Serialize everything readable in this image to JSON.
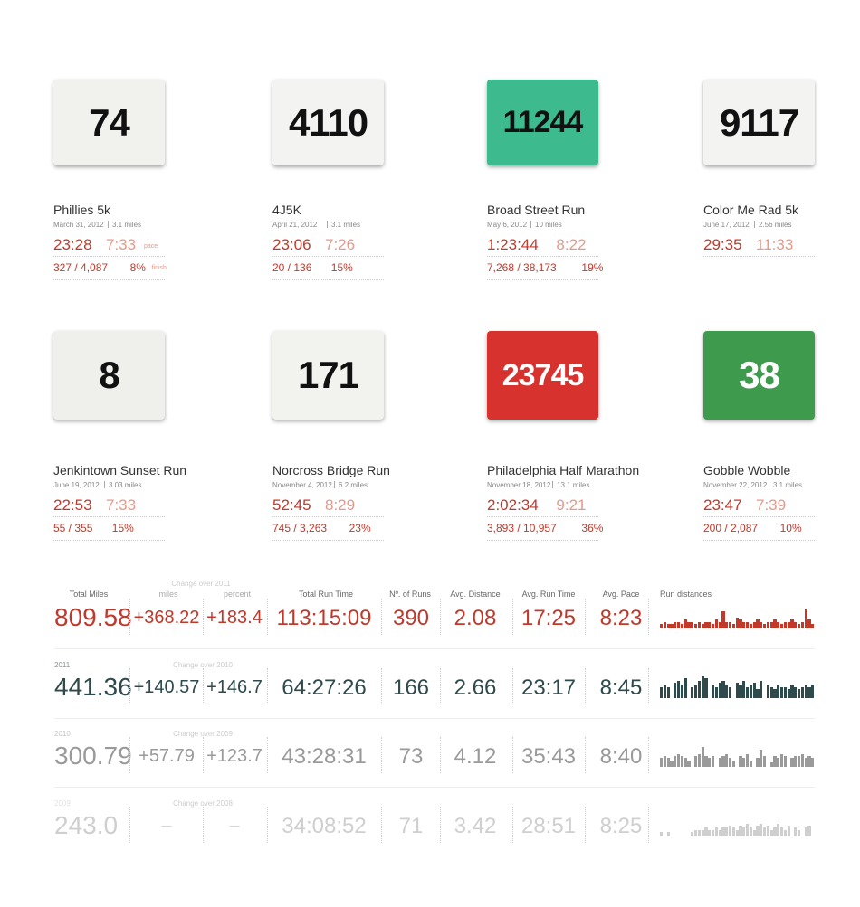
{
  "races": [
    {
      "name": "Phillies 5k",
      "date": "March 31, 2012",
      "distance": "3.1 miles",
      "time": "23:28",
      "pace": "7:33",
      "pace_label": "pace",
      "place": "327 / 4,087",
      "percent": "8%",
      "percent_label": "finish",
      "bib": "74",
      "bib_color": "#f1f1ee"
    },
    {
      "name": "4J5K",
      "date": "April 21, 2012",
      "distance": "3.1 miles",
      "time": "23:06",
      "pace": "7:26",
      "place": "20 / 136",
      "percent": "15%",
      "bib": "4110",
      "bib_color": "#f3f3f1"
    },
    {
      "name": "Broad Street Run",
      "date": "May 6, 2012",
      "distance": "10 miles",
      "time": "1:23:44",
      "pace": "8:22",
      "place": "7,268 / 38,173",
      "percent": "19%",
      "bib": "11244",
      "bib_color": "#3dbb8e"
    },
    {
      "name": "Color Me Rad 5k",
      "date": "June 17, 2012",
      "distance": "2.56 miles",
      "time": "29:35",
      "pace": "11:33",
      "bib": "9117",
      "bib_color": "#f3f3f1"
    },
    {
      "name": "Jenkintown Sunset Run",
      "date": "June 19, 2012",
      "distance": "3.03 miles",
      "time": "22:53",
      "pace": "7:33",
      "place": "55 / 355",
      "percent": "15%",
      "bib": "8",
      "bib_color": "#efefec"
    },
    {
      "name": "Norcross Bridge Run",
      "date": "November 4, 2012",
      "distance": "6.2 miles",
      "time": "52:45",
      "pace": "8:29",
      "place": "745 / 3,263",
      "percent": "23%",
      "bib": "171",
      "bib_color": "#f2f2ef"
    },
    {
      "name": "Philadelphia Half Marathon",
      "date": "November 18, 2012",
      "distance": "13.1 miles",
      "time": "2:02:34",
      "pace": "9:21",
      "place": "3,893 / 10,957",
      "percent": "36%",
      "bib": "23745",
      "bib_color": "#d8322f"
    },
    {
      "name": "Gobble Wobble",
      "date": "November 22, 2012",
      "distance": "3.1 miles",
      "time": "23:47",
      "pace": "7:39",
      "place": "200 / 2,087",
      "percent": "10%",
      "bib": "38",
      "bib_color": "#3e9a4c"
    }
  ],
  "stats": {
    "headers": {
      "total_miles": "Total Miles",
      "change": "Change over 2011",
      "miles": "miles",
      "percent": "percent",
      "run_time": "Total Run Time",
      "runs": "Nº. of Runs",
      "avg_distance": "Avg. Distance",
      "avg_run_time": "Avg. Run Time",
      "avg_pace": "Avg. Pace",
      "run_distances": "Run distances"
    },
    "rows": [
      {
        "color": "#c0392b",
        "total_miles": "809.58",
        "change_miles": "+368.22",
        "change_percent": "+183.4",
        "run_time": "113:15:09",
        "runs": "390",
        "avg_distance": "2.08",
        "avg_run_time": "17:25",
        "avg_pace": "8:23",
        "run_distances": [
          2,
          3,
          2,
          2,
          3,
          3,
          2,
          4,
          3,
          3,
          2,
          3,
          2,
          3,
          3,
          2,
          4,
          3,
          8,
          3,
          3,
          2,
          5,
          4,
          3,
          3,
          2,
          3,
          4,
          3,
          2,
          3,
          3,
          4,
          3,
          2,
          3,
          3,
          4,
          3,
          2,
          3,
          9,
          4,
          2
        ]
      },
      {
        "year": "2011",
        "change_label": "Change over 2010",
        "color": "#2f4a4c",
        "total_miles": "441.36",
        "change_miles": "+140.57",
        "change_percent": "+146.7",
        "run_time": "64:27:26",
        "runs": "166",
        "avg_distance": "2.66",
        "avg_run_time": "23:17",
        "avg_pace": "8:45",
        "run_distances": [
          5,
          6,
          5,
          0,
          7,
          8,
          6,
          9,
          0,
          5,
          6,
          8,
          10,
          9,
          0,
          6,
          5,
          7,
          8,
          6,
          5,
          0,
          7,
          6,
          8,
          5,
          6,
          7,
          4,
          8,
          0,
          6,
          5,
          4,
          6,
          5,
          5,
          4,
          6,
          5,
          4,
          5,
          6,
          5,
          6
        ]
      },
      {
        "year": "2010",
        "change_label": "Change over 2009",
        "color": "#9a9a9a",
        "total_miles": "300.79",
        "change_miles": "+57.79",
        "change_percent": "+123.7",
        "run_time": "43:28:31",
        "runs": "73",
        "avg_distance": "4.12",
        "avg_run_time": "35:43",
        "avg_pace": "8:40",
        "run_distances": [
          4,
          5,
          4,
          3,
          5,
          6,
          5,
          4,
          3,
          0,
          5,
          6,
          9,
          5,
          4,
          5,
          0,
          4,
          5,
          6,
          4,
          3,
          0,
          5,
          4,
          6,
          3,
          0,
          4,
          8,
          5,
          0,
          2,
          5,
          4,
          6,
          5,
          0,
          4,
          5,
          5,
          6,
          4,
          5,
          4
        ]
      },
      {
        "year": "2009",
        "change_label": "Change over 2008",
        "color": "#cfcfcf",
        "total_miles": "243.0",
        "change_miles": "–",
        "change_percent": "–",
        "run_time": "34:08:52",
        "runs": "71",
        "avg_distance": "3.42",
        "avg_run_time": "28:51",
        "avg_pace": "8:25",
        "run_distances": [
          2,
          0,
          2,
          0,
          0,
          0,
          0,
          0,
          0,
          2,
          3,
          3,
          3,
          4,
          3,
          3,
          4,
          3,
          4,
          4,
          5,
          4,
          3,
          5,
          4,
          6,
          4,
          3,
          5,
          6,
          4,
          5,
          3,
          4,
          6,
          4,
          3,
          5,
          0,
          4,
          3,
          0,
          4,
          5,
          0
        ]
      }
    ]
  }
}
